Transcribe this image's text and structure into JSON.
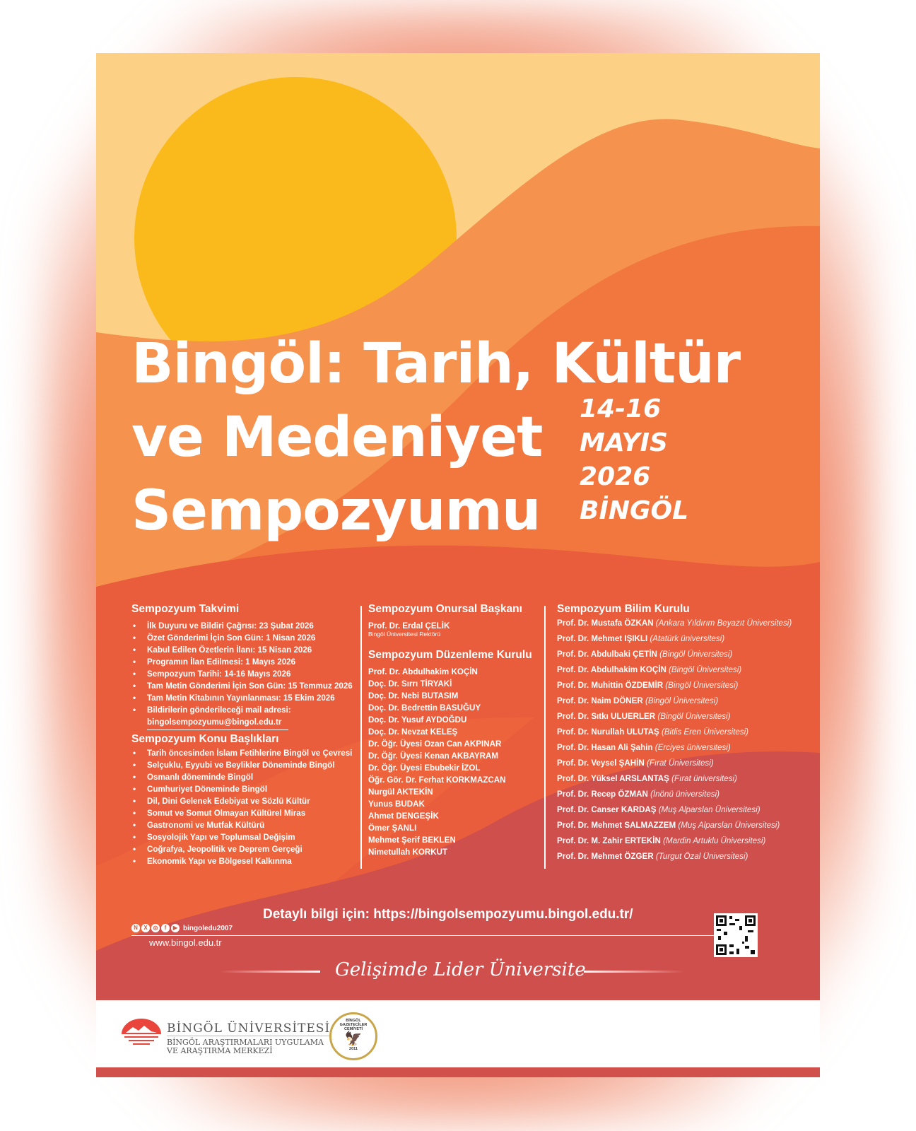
{
  "title_lines": [
    "Bingöl: Tarih, Kültür",
    "ve Medeniyet",
    "Sempozyumu"
  ],
  "date_lines": [
    "14-16",
    "MAYIS",
    "2026",
    "BİNGÖL"
  ],
  "colors": {
    "sky": "#FDD185",
    "sun": "#FBBA1B",
    "wave1": "#F5924E",
    "wave2": "#F2773F",
    "wave3": "#EA5D3C",
    "wave4": "#CF4F4D"
  },
  "calendar": {
    "heading": "Sempozyum Takvimi",
    "items": [
      "İlk Duyuru ve Bildiri Çağrısı: 23 Şubat 2026",
      "Özet Gönderimi İçin Son Gün: 1 Nisan 2026",
      "Kabul Edilen Özetlerin İlanı: 15 Nisan 2026",
      "Programın İlan Edilmesi: 1 Mayıs 2026",
      "Sempozyum Tarihi: 14-16 Mayıs 2026",
      "Tam Metin Gönderimi İçin Son Gün: 15 Temmuz 2026",
      "Tam Metin Kitabının Yayınlanması: 15 Ekim 2026",
      "Bildirilerin gönderileceği mail adresi:"
    ],
    "email": "bingolsempozyumu@bingol.edu.tr"
  },
  "topics": {
    "heading": "Sempozyum Konu Başlıkları",
    "items": [
      "Tarih öncesinden İslam Fetihlerine Bingöl ve Çevresi",
      "Selçuklu, Eyyubi ve Beylikler Döneminde Bingöl",
      "Osmanlı döneminde Bingöl",
      "Cumhuriyet Döneminde Bingöl",
      "Dil, Dini Gelenek Edebiyat ve Sözlü Kültür",
      "Somut ve Somut Olmayan Kültürel Miras",
      "Gastronomi ve Mutfak Kültürü",
      "Sosyolojik Yapı ve Toplumsal Değişim",
      "Coğrafya, Jeopolitik ve Deprem Gerçeği",
      "Ekonomik Yapı ve Bölgesel Kalkınma"
    ]
  },
  "honorary": {
    "heading": "Sempozyum Onursal Başkanı",
    "name": "Prof. Dr. Erdal ÇELİK",
    "role": "Bingöl Üniversitesi Rektörü"
  },
  "organizing": {
    "heading": "Sempozyum Düzenleme Kurulu",
    "members": [
      "Prof. Dr. Abdulhakim KOÇİN",
      "Doç. Dr. Sırrı TİRYAKİ",
      "Doç. Dr. Nebi BUTASIM",
      "Doç. Dr. Bedrettin BASUĞUY",
      "Doç. Dr. Yusuf AYDOĞDU",
      "Doç. Dr. Nevzat KELEŞ",
      "Dr. Öğr. Üyesi Ozan Can AKPINAR",
      "Dr. Öğr. Üyesi Kenan AKBAYRAM",
      "Dr. Öğr. Üyesi Ebubekir İZOL",
      "Öğr. Gör. Dr. Ferhat KORKMAZCAN",
      "Nurgül AKTEKİN",
      "Yunus BUDAK",
      "Ahmet DENGEŞİK",
      "Ömer ŞANLI",
      "Mehmet Şerif BEKLEN",
      "Nimetullah KORKUT"
    ]
  },
  "scientific": {
    "heading": "Sempozyum Bilim Kurulu",
    "members": [
      {
        "name": "Prof. Dr. Mustafa ÖZKAN",
        "inst": "(Ankara Yıldırım Beyazıt Üniversitesi)"
      },
      {
        "name": "Prof. Dr. Mehmet IŞIKLI",
        "inst": "(Atatürk üniversitesi)"
      },
      {
        "name": "Prof. Dr. Abdulbaki ÇETİN",
        "inst": "(Bingöl Üniversitesi)"
      },
      {
        "name": "Prof. Dr. Abdulhakim KOÇİN",
        "inst": "(Bingöl Üniversitesi)"
      },
      {
        "name": "Prof. Dr. Muhittin ÖZDEMİR",
        "inst": "(Bingöl Üniversitesi)"
      },
      {
        "name": "Prof. Dr. Naim DÖNER",
        "inst": "(Bingöl Üniversitesi)"
      },
      {
        "name": "Prof. Dr. Sıtkı ULUERLER",
        "inst": "(Bingöl Üniversitesi)"
      },
      {
        "name": "Prof. Dr. Nurullah ULUTAŞ",
        "inst": "(Bitlis Eren Üniversitesi)"
      },
      {
        "name": "Prof. Dr. Hasan Ali Şahin",
        "inst": "(Erciyes üniversitesi)"
      },
      {
        "name": "Prof. Dr. Veysel ŞAHİN",
        "inst": "(Fırat Üniversitesi)"
      },
      {
        "name": "Prof. Dr. Yüksel ARSLANTAŞ",
        "inst": "(Fırat üniversitesi)"
      },
      {
        "name": "Prof. Dr. Recep ÖZMAN",
        "inst": "(İnönü üniversitesi)"
      },
      {
        "name": "Prof. Dr. Canser KARDAŞ",
        "inst": "(Muş Alparslan Üniversitesi)"
      },
      {
        "name": "Prof. Dr. Mehmet SALMAZZEM",
        "inst": "(Muş Alparslan Üniversitesi)"
      },
      {
        "name": "Prof. Dr. M. Zahir ERTEKİN",
        "inst": "(Mardin Artuklu Üniversitesi)"
      },
      {
        "name": "Prof. Dr. Mehmet ÖZGER",
        "inst": "(Turgut Özal Üniversitesi)"
      }
    ]
  },
  "contact": {
    "details": "Detaylı bilgi için: https://bingolsempozyumu.bingol.edu.tr/",
    "social_handle": "bingoledu2007",
    "social_icons": [
      "nsosyal-icon",
      "x-icon",
      "instagram-icon",
      "facebook-icon",
      "youtube-icon"
    ],
    "website": "www.bingol.edu.tr"
  },
  "slogan": "Gelişimde Lider Üniversite",
  "logos": {
    "university": "BİNGÖL ÜNİVERSİTESİ",
    "center_line1": "BİNGÖL ARAŞTIRMALARI UYGULAMA",
    "center_line2": "VE ARAŞTIRMA MERKEZİ",
    "badge_top": "BİNGÖL",
    "badge_mid": "GAZETECİLER CEMİYETİ",
    "badge_year": "2011"
  }
}
